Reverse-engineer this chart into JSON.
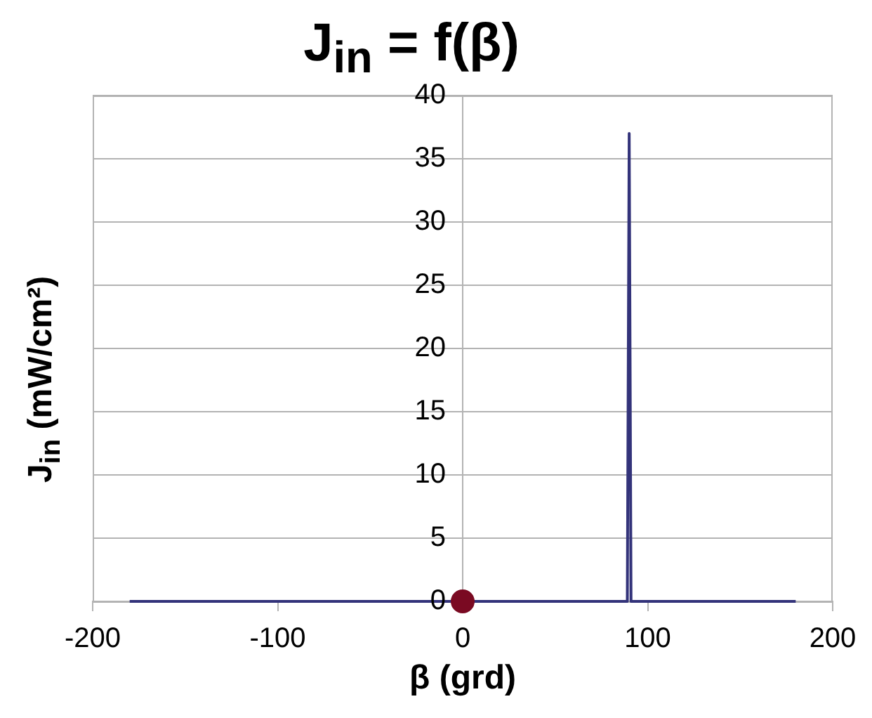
{
  "chart_data": {
    "type": "line",
    "title": "J$_{in}$ = f(β)",
    "xlabel": "β (grd)",
    "ylabel": "J$_{in}$ (mW/cm²)",
    "series": [
      {
        "type": "line",
        "color": "#33337a",
        "x": [
          -180,
          89,
          90,
          91,
          180
        ],
        "values": [
          0,
          0,
          37,
          0,
          0
        ]
      },
      {
        "type": "scatter",
        "color": "#7a0a22",
        "marker": "circle",
        "x": [
          0
        ],
        "values": [
          0
        ]
      }
    ],
    "xlim": [
      -200,
      200
    ],
    "xticks": [
      -200,
      -100,
      0,
      100,
      200
    ],
    "ylim": [
      0,
      40
    ],
    "yticks": [
      0,
      5,
      10,
      15,
      20,
      25,
      30,
      35,
      40
    ],
    "grid": "y",
    "legend": false
  }
}
